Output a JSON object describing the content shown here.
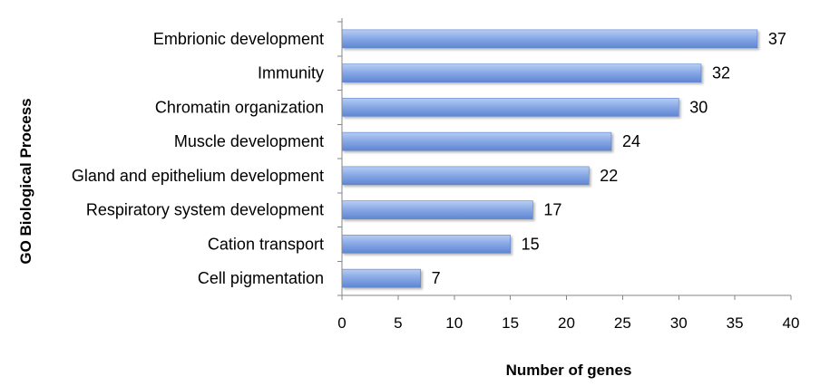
{
  "chart_data": {
    "type": "bar",
    "orientation": "horizontal",
    "title": "",
    "xlabel": "Number of genes",
    "ylabel": "GO Biological Process",
    "categories": [
      "Embrionic development",
      "Immunity",
      "Chromatin organization",
      "Muscle development",
      "Gland and epithelium development",
      "Respiratory system development",
      "Cation transport",
      "Cell pigmentation"
    ],
    "values": [
      37,
      32,
      30,
      24,
      22,
      17,
      15,
      7
    ],
    "xlim": [
      0,
      40
    ],
    "xticks": [
      "0",
      "5",
      "10",
      "15",
      "20",
      "25",
      "30",
      "35",
      "40"
    ],
    "grid": false,
    "legend": "none",
    "bar_color": "#6b93d9",
    "bar_color_light": "#a9c1ee",
    "data_labels": true
  }
}
